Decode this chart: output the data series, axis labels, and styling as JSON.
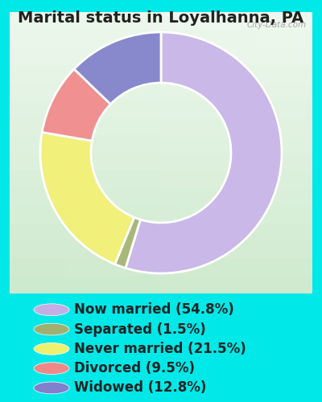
{
  "title": "Marital status in Loyalhanna, PA",
  "slices": [
    54.8,
    1.5,
    21.5,
    9.5,
    12.8
  ],
  "labels": [
    "Now married (54.8%)",
    "Separated (1.5%)",
    "Never married (21.5%)",
    "Divorced (9.5%)",
    "Widowed (12.8%)"
  ],
  "colors": [
    "#c9b8e8",
    "#a8b87a",
    "#f0f07a",
    "#f09090",
    "#8888cc"
  ],
  "legend_dot_colors": [
    "#c4aee4",
    "#a0b070",
    "#f0f070",
    "#f08888",
    "#8080cc"
  ],
  "bg_outer": "#00e8e8",
  "bg_inner_tl": "#d8edd8",
  "bg_inner_br": "#e8f4f0",
  "title_fontsize": 14,
  "legend_fontsize": 12,
  "watermark": "City-Data.com",
  "start_angle": 90,
  "donut_width": 0.42
}
